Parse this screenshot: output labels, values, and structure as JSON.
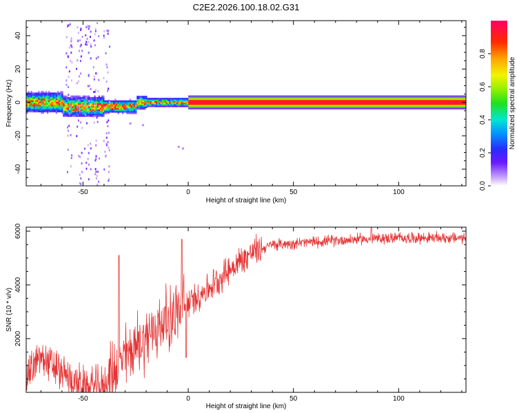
{
  "title": "C2E2.2026.100.18.02.G31",
  "colors": {
    "snr_line": "#e53333",
    "axis": "#000000"
  },
  "colorbar": {
    "label": "Normalized spectral amplitude",
    "range": [
      0,
      1
    ],
    "ticks": [
      "0.0",
      "0.2",
      "0.4",
      "0.6",
      "0.8"
    ],
    "tick_values": [
      0,
      0.2,
      0.4,
      0.6,
      0.8
    ]
  },
  "chart_data": [
    {
      "type": "heatmap",
      "xlabel": "Height of straight line (km)",
      "ylabel": "Frequency (Hz)",
      "xlim": [
        -77,
        132
      ],
      "ylim": [
        -50,
        49
      ],
      "xticks": [
        "-50",
        "0",
        "50",
        "100"
      ],
      "xtick_values": [
        -50,
        0,
        50,
        100
      ],
      "yticks": [
        "-40",
        "-20",
        "0",
        "20",
        "40"
      ],
      "ytick_values": [
        -40,
        -20,
        0,
        20,
        40
      ],
      "steady_tone": {
        "x_start": 0,
        "x_end": 132,
        "frequency": 0,
        "amplitude": 1.0
      },
      "noisy_segment": {
        "x_start": -77,
        "x_end": 0,
        "center_frequency": 0,
        "amplitude_peak": 0.95
      },
      "spike_columns_x": [
        -57,
        -52,
        -48,
        -44,
        -39
      ]
    },
    {
      "type": "line",
      "xlabel": "Height of straight line (km)",
      "ylabel": "SNR (10 * v/v)",
      "xlim": [
        -77,
        132
      ],
      "ylim": [
        0,
        6150
      ],
      "xticks": [
        "-50",
        "0",
        "50",
        "100"
      ],
      "xtick_values": [
        -50,
        0,
        50,
        100
      ],
      "yticks": [
        "2000",
        "4000",
        "6000"
      ],
      "ytick_values": [
        2000,
        4000,
        6000
      ],
      "trend": {
        "x": [
          -77,
          -70,
          -60,
          -50,
          -40,
          -33,
          -25,
          -15,
          -5,
          0,
          10,
          20,
          30,
          40,
          60,
          80,
          100,
          132
        ],
        "y": [
          600,
          1300,
          700,
          200,
          250,
          1100,
          1700,
          2400,
          3000,
          3300,
          3900,
          4600,
          5200,
          5500,
          5600,
          5700,
          5750,
          5750
        ]
      },
      "spikes": [
        {
          "x": -33,
          "y": 5100
        },
        {
          "x": -3,
          "y": 5700
        },
        {
          "x": -1,
          "y": 1300
        },
        {
          "x": 87,
          "y": 6150
        }
      ]
    }
  ]
}
